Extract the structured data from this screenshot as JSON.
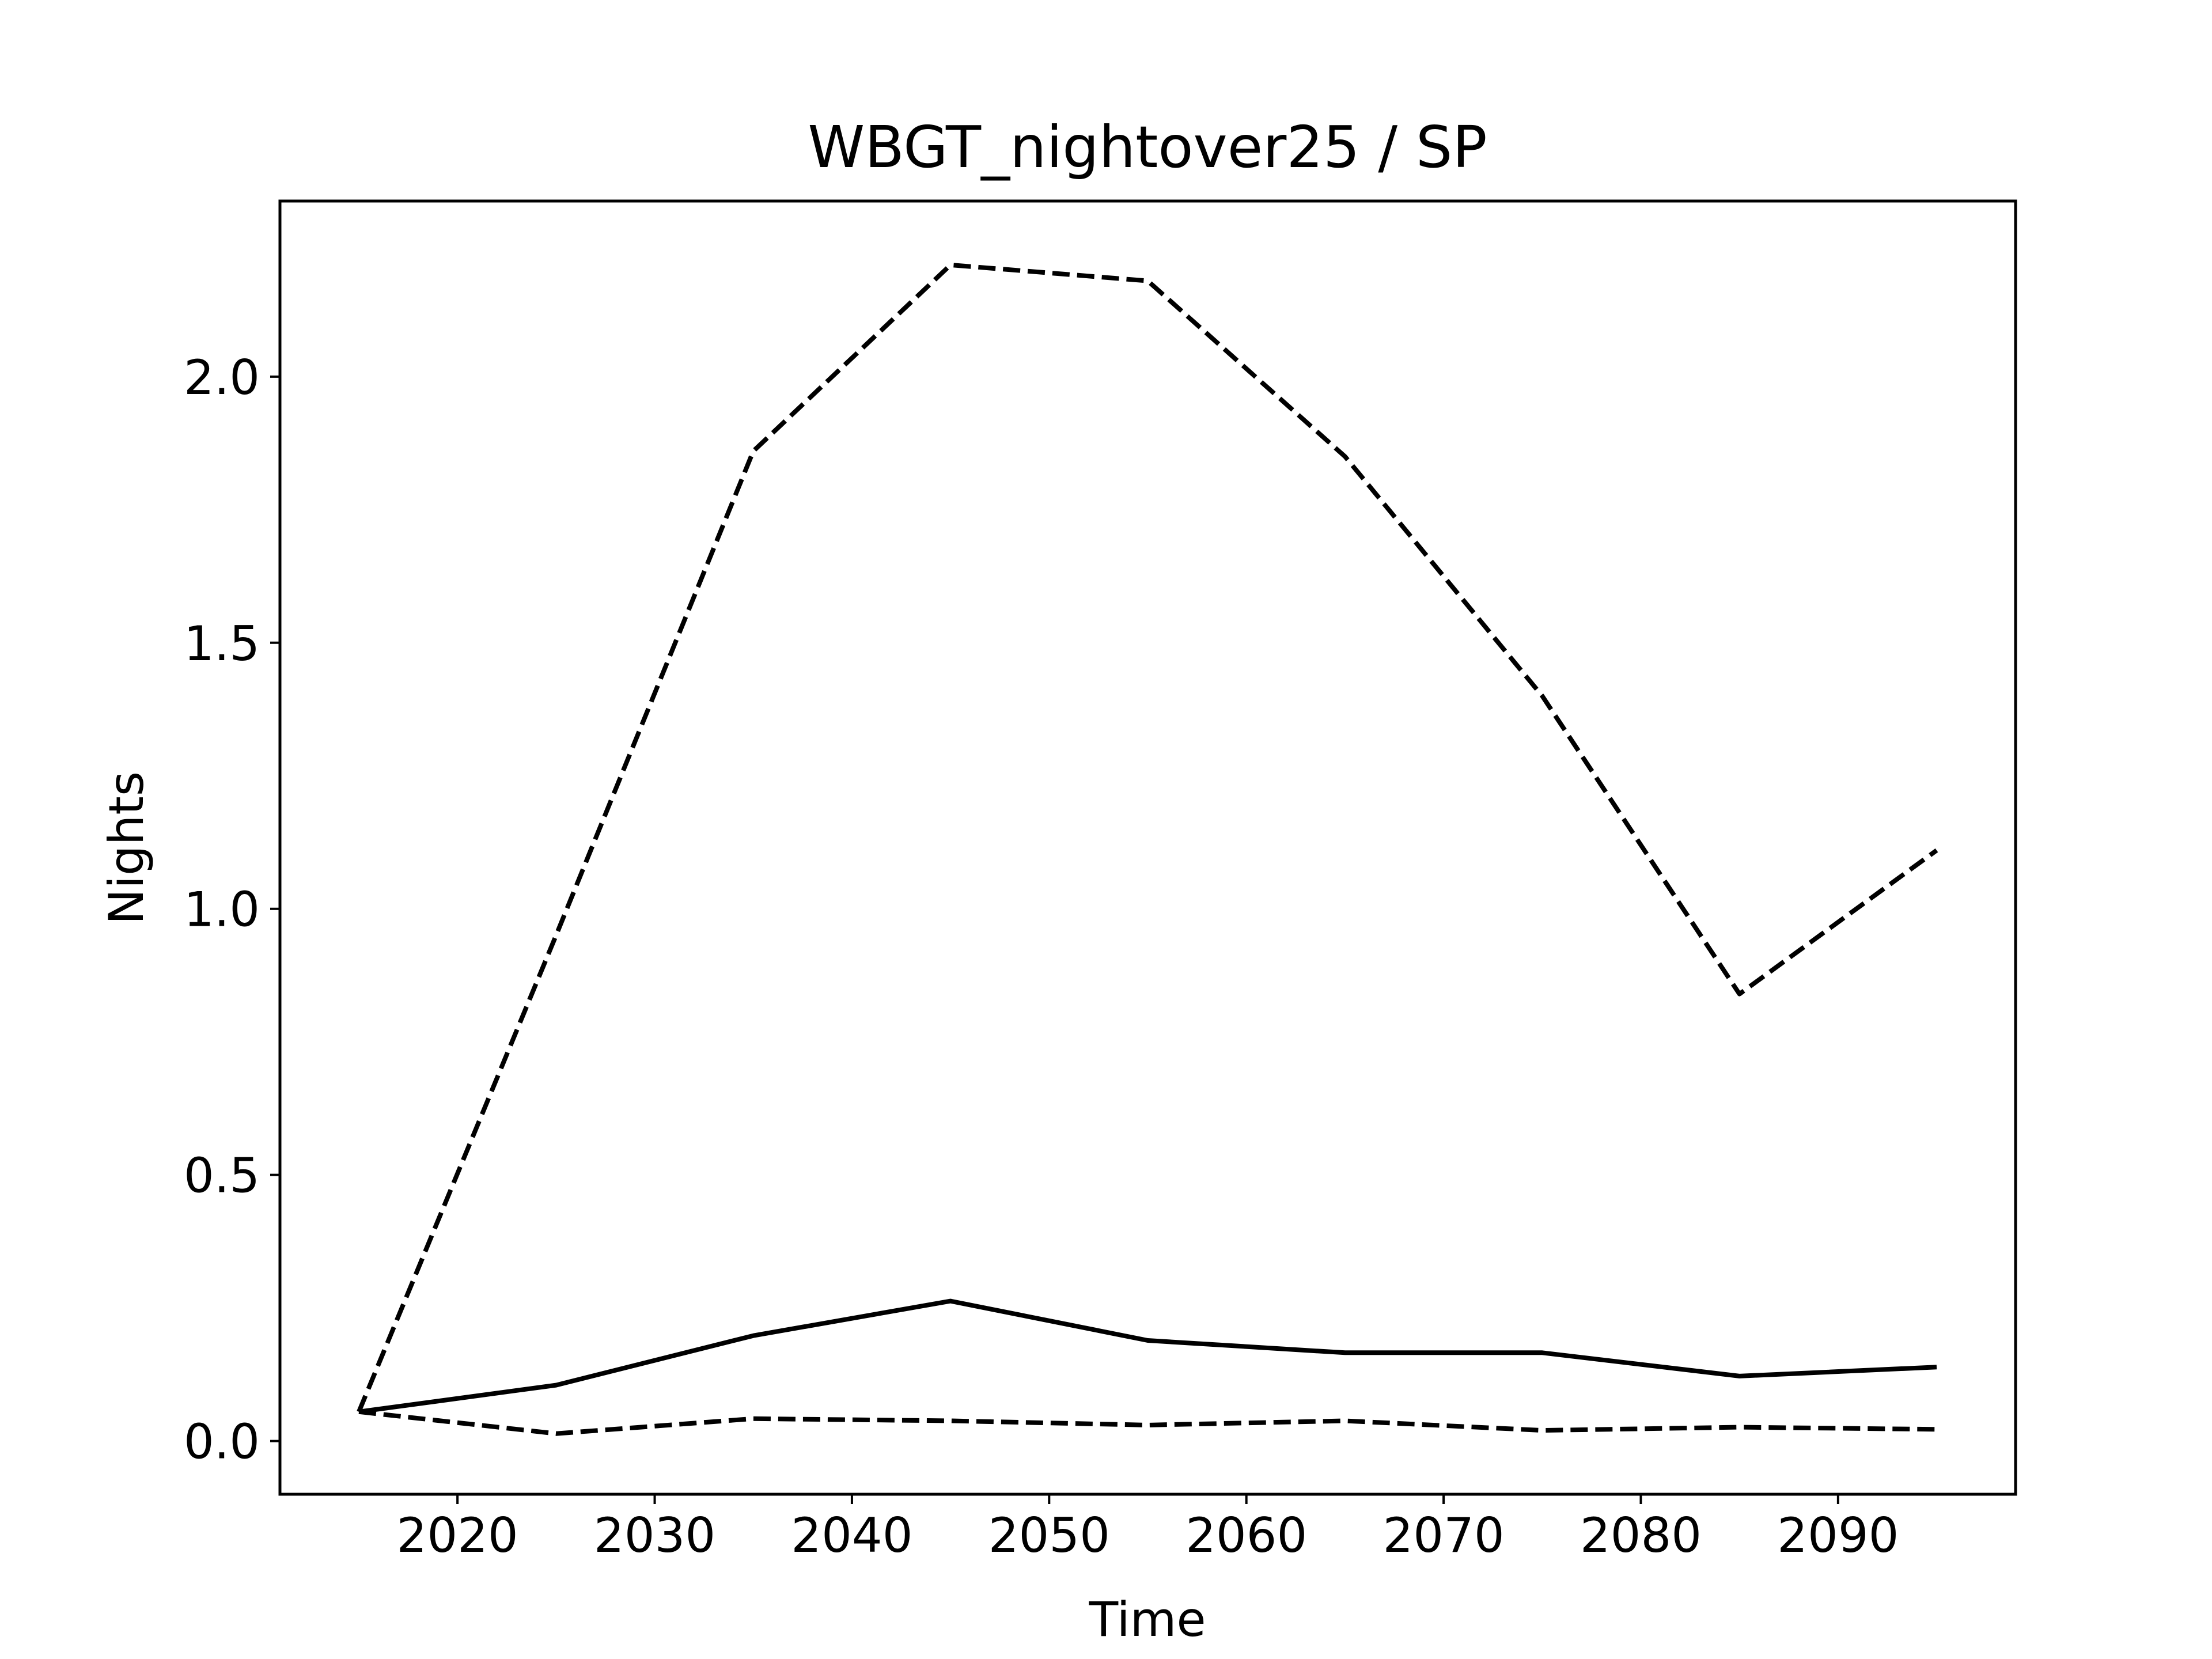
{
  "chart_data": {
    "type": "line",
    "title": "WBGT_nightover25 / SP",
    "xlabel": "Time",
    "ylabel": "Nights",
    "xlim": [
      2011,
      2099
    ],
    "ylim": [
      -0.1,
      2.33
    ],
    "xticks": [
      2020,
      2030,
      2040,
      2050,
      2060,
      2070,
      2080,
      2090
    ],
    "yticks": [
      0.0,
      0.5,
      1.0,
      1.5,
      2.0
    ],
    "xtick_labels": [
      "2020",
      "2030",
      "2040",
      "2050",
      "2060",
      "2070",
      "2080",
      "2090"
    ],
    "ytick_labels": [
      "0.0",
      "0.5",
      "1.0",
      "1.5",
      "2.0"
    ],
    "grid": false,
    "x": [
      2015,
      2025,
      2035,
      2045,
      2055,
      2065,
      2075,
      2085,
      2095
    ],
    "series": [
      {
        "style": "solid",
        "color": "#000000",
        "values": [
          0.055,
          0.105,
          0.198,
          0.263,
          0.189,
          0.166,
          0.166,
          0.122,
          0.139
        ]
      },
      {
        "style": "dashed",
        "color": "#000000",
        "values": [
          0.055,
          0.95,
          1.86,
          2.21,
          2.18,
          1.85,
          1.4,
          0.84,
          1.11
        ]
      },
      {
        "style": "dashed",
        "color": "#000000",
        "values": [
          0.055,
          0.014,
          0.042,
          0.038,
          0.03,
          0.038,
          0.02,
          0.026,
          0.022
        ]
      }
    ]
  }
}
